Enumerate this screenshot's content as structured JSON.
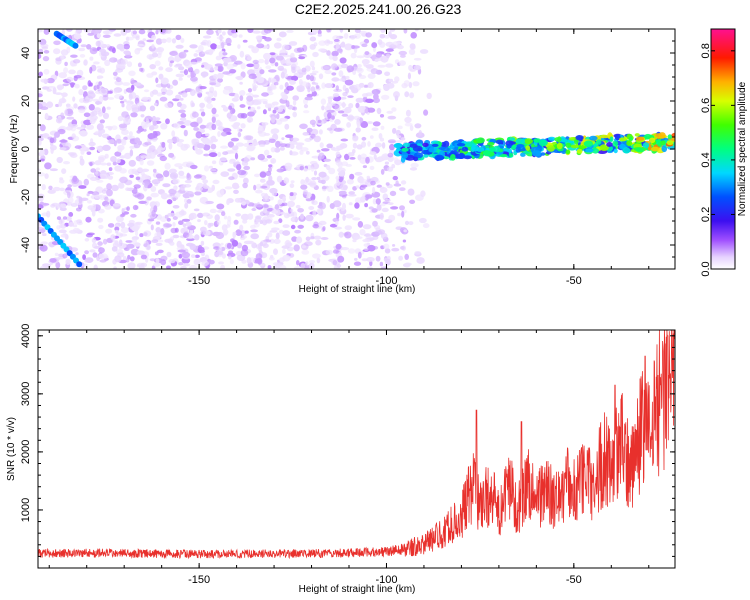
{
  "title": "C2E2.2025.241.00.26.G23",
  "colors": {
    "axis": "#000000",
    "snr_line": "#e8302c",
    "spectrogram_low": "#d9c2ff",
    "spectrogram_mid": "#8a2be2",
    "spectrogram_high": "#ff0000"
  },
  "chart_data": [
    {
      "type": "heatmap",
      "title": "",
      "xlabel": "Height of straight line (km)",
      "ylabel": "Frequency (Hz)",
      "xlim": [
        -193,
        -23
      ],
      "ylim": [
        -50,
        50
      ],
      "xticks": [
        -150,
        -100,
        -50
      ],
      "yticks": [
        -40,
        -20,
        0,
        20,
        40
      ],
      "colorbar": {
        "label": "Normalized spectral amplitude",
        "range": [
          0.0,
          0.88
        ],
        "ticks": [
          0.0,
          0.2,
          0.4,
          0.6,
          0.8
        ],
        "colormap": "rainbow (violet-blue-cyan-green-yellow-red-magenta)"
      },
      "features": [
        {
          "name": "signal-track",
          "x_range": [
            -97,
            -23
          ],
          "frequency_start_hz": -1,
          "frequency_end_hz": 3,
          "amplitude_range": [
            0.2,
            0.85
          ]
        },
        {
          "name": "noise-field",
          "x_range": [
            -193,
            -90
          ],
          "frequency_range_hz": [
            -50,
            50
          ],
          "amplitude_range": [
            0.0,
            0.25
          ]
        },
        {
          "name": "streak-upper-left",
          "x_start": -188,
          "y_start_hz": 48,
          "x_end": -183,
          "y_end_hz": 43
        },
        {
          "name": "streak-lower-left",
          "x_start": -193,
          "y_start_hz": -28,
          "x_end": -182,
          "y_end_hz": -48
        }
      ]
    },
    {
      "type": "line",
      "title": "",
      "xlabel": "Height of straight line (km)",
      "ylabel": "SNR (10 * v/v)",
      "xlim": [
        -193,
        -23
      ],
      "ylim": [
        0,
        4100
      ],
      "xticks": [
        -150,
        -100,
        -50
      ],
      "yticks": [
        1000,
        2000,
        3000,
        4000
      ],
      "grid": false,
      "series": [
        {
          "x": [
            -193,
            -180,
            -165,
            -150,
            -135,
            -120,
            -110,
            -100,
            -95,
            -90,
            -85,
            -80,
            -77,
            -75,
            -72,
            -70,
            -67,
            -65,
            -62,
            -60,
            -57,
            -55,
            -52,
            -50,
            -47,
            -45,
            -42,
            -40,
            -37,
            -35,
            -32,
            -30,
            -28,
            -26,
            -24,
            -23
          ],
          "y": [
            250,
            260,
            250,
            240,
            245,
            250,
            260,
            280,
            330,
            420,
            600,
            900,
            1400,
            1100,
            1300,
            900,
            1450,
            1000,
            1500,
            1200,
            1350,
            1100,
            1500,
            1300,
            1600,
            1400,
            1900,
            1800,
            2100,
            1700,
            2400,
            2300,
            2800,
            3000,
            3600,
            4000
          ],
          "peaks": [
            {
              "x": -76,
              "y": 2720
            },
            {
              "x": -64,
              "y": 2520
            },
            {
              "x": -39,
              "y": 3150
            },
            {
              "x": -31,
              "y": 3650
            },
            {
              "x": -25,
              "y": 4000
            },
            {
              "x": -23,
              "y": 4050
            }
          ]
        }
      ]
    }
  ]
}
